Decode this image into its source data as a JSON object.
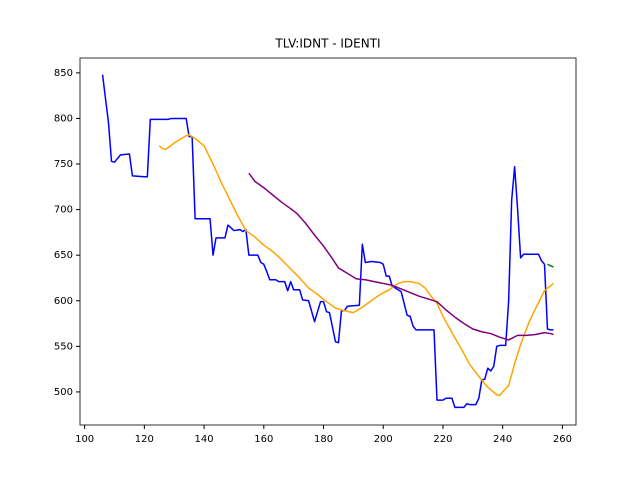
{
  "chart_data": {
    "type": "line",
    "title": "TLV:IDNT - IDENTI",
    "xlim": [
      98.45,
      264.55
    ],
    "xticks": [
      100,
      120,
      140,
      160,
      180,
      200,
      220,
      240,
      260
    ],
    "ylim": [
      463.7,
      866.3
    ],
    "yticks": [
      500,
      550,
      600,
      650,
      700,
      750,
      800,
      850
    ],
    "grid": false,
    "legend": false,
    "series": [
      {
        "color": "#0000ff",
        "x": [
          106,
          108,
          109,
          110,
          112,
          115,
          116,
          120,
          121,
          122,
          128,
          129,
          134,
          135,
          136,
          137,
          142,
          143,
          144,
          147,
          148,
          150,
          152,
          153,
          154,
          155,
          158,
          159,
          160,
          161,
          162,
          164,
          165,
          167,
          168,
          169,
          170,
          172,
          173,
          175,
          177,
          179,
          180,
          181,
          182,
          184,
          185,
          186,
          187,
          188,
          192,
          193,
          194,
          196,
          199,
          200,
          201,
          202,
          203,
          204,
          206,
          208,
          209,
          210,
          211,
          217,
          218,
          220,
          221,
          223,
          224,
          227,
          228,
          229,
          231,
          232,
          233,
          234,
          235,
          236,
          237,
          238,
          239,
          241,
          242,
          243,
          244,
          245,
          246,
          247,
          252,
          253,
          254,
          255,
          256,
          257
        ],
        "values": [
          848,
          795,
          753,
          752,
          760,
          761,
          737,
          736,
          736,
          799,
          799,
          800,
          800,
          780,
          780,
          690,
          690,
          650,
          669,
          669,
          683,
          677,
          678,
          676,
          678,
          650,
          650,
          642,
          640,
          632,
          623,
          623,
          621,
          621,
          611,
          621,
          612,
          612,
          601,
          600,
          577,
          599,
          599,
          588,
          587,
          555,
          554,
          589,
          589,
          594,
          595,
          662,
          642,
          643,
          642,
          640,
          627,
          627,
          616,
          614,
          610,
          584,
          583,
          572,
          568,
          568,
          491,
          491,
          493,
          493,
          483,
          483,
          487,
          486,
          486,
          493,
          513,
          514,
          526,
          523,
          528,
          550,
          551,
          551,
          600,
          710,
          747,
          700,
          647,
          651,
          651,
          644,
          640,
          569,
          568,
          568
        ]
      },
      {
        "color": "#ffa500",
        "x": [
          125,
          126,
          127,
          128,
          130,
          132,
          134,
          135,
          137,
          140,
          143,
          146,
          148,
          151,
          154,
          157,
          160,
          163,
          166,
          169,
          172,
          175,
          178,
          181,
          184,
          187,
          190,
          193,
          196,
          199,
          202,
          205,
          207,
          209,
          212,
          214,
          216,
          218,
          220,
          223,
          226,
          229,
          232,
          235,
          238,
          239,
          240,
          242,
          244,
          246,
          249,
          252,
          254,
          257
        ],
        "values": [
          770,
          767,
          766,
          768,
          773,
          777,
          781,
          782,
          778,
          770,
          750,
          728,
          715,
          695,
          677,
          670,
          661,
          654,
          645,
          635,
          625,
          614,
          607,
          599,
          592,
          589,
          587,
          593,
          600,
          607,
          612,
          619,
          621,
          621,
          619,
          614,
          605,
          597,
          583,
          565,
          548,
          530,
          517,
          505,
          497,
          496,
          500,
          507,
          531,
          552,
          578,
          598,
          611,
          619
        ]
      },
      {
        "color": "#800080",
        "x": [
          155,
          157,
          160,
          163,
          166,
          169,
          171,
          174,
          177,
          180,
          183,
          185,
          188,
          191,
          194,
          197,
          200,
          203,
          206,
          209,
          212,
          215,
          218,
          221,
          224,
          227,
          230,
          233,
          236,
          239,
          242,
          245,
          248,
          251,
          254,
          256,
          257
        ],
        "values": [
          740,
          731,
          724,
          716,
          708,
          701,
          696,
          685,
          672,
          660,
          646,
          636,
          630,
          624,
          623,
          621,
          619,
          617,
          613,
          609,
          605,
          602,
          599,
          590,
          582,
          575,
          569,
          566,
          564,
          560,
          557,
          562,
          562,
          563,
          565,
          564,
          563
        ]
      },
      {
        "color": "#008000",
        "x": [
          255,
          257
        ],
        "values": [
          640,
          637
        ]
      }
    ]
  }
}
